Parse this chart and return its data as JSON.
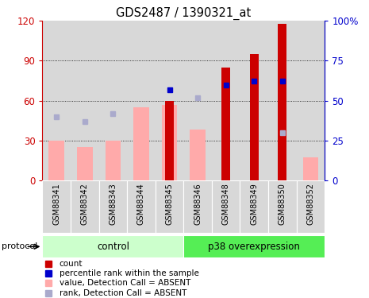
{
  "title": "GDS2487 / 1390321_at",
  "samples": [
    "GSM88341",
    "GSM88342",
    "GSM88343",
    "GSM88344",
    "GSM88345",
    "GSM88346",
    "GSM88348",
    "GSM88349",
    "GSM88350",
    "GSM88352"
  ],
  "count_values": [
    0,
    0,
    0,
    0,
    60,
    0,
    85,
    95,
    118,
    0
  ],
  "percentile_rank": [
    null,
    null,
    null,
    null,
    57,
    null,
    60,
    62,
    62,
    null
  ],
  "value_absent": [
    30,
    25,
    30,
    55,
    57,
    38,
    null,
    null,
    null,
    17
  ],
  "rank_absent": [
    40,
    37,
    42,
    null,
    null,
    52,
    null,
    null,
    30,
    null
  ],
  "groups": [
    "control",
    "control",
    "control",
    "control",
    "control",
    "p38 overexpression",
    "p38 overexpression",
    "p38 overexpression",
    "p38 overexpression",
    "p38 overexpression"
  ],
  "ylim_left": [
    0,
    120
  ],
  "ylim_right": [
    0,
    100
  ],
  "yticks_left": [
    0,
    30,
    60,
    90,
    120
  ],
  "yticks_right": [
    0,
    25,
    50,
    75,
    100
  ],
  "ytick_labels_left": [
    "0",
    "30",
    "60",
    "90",
    "120"
  ],
  "ytick_labels_right": [
    "0",
    "25",
    "50",
    "75",
    "100%"
  ],
  "color_count": "#cc0000",
  "color_percentile": "#0000cc",
  "color_value_absent": "#ffaaaa",
  "color_rank_absent": "#aaaacc",
  "control_color": "#ccffcc",
  "overexpression_color": "#55ee55",
  "bar_width": 0.55,
  "protocol_label": "protocol",
  "control_label": "control",
  "overexpression_label": "p38 overexpression",
  "legend_items": [
    "count",
    "percentile rank within the sample",
    "value, Detection Call = ABSENT",
    "rank, Detection Call = ABSENT"
  ],
  "col_bg": "#d8d8d8",
  "plot_bg": "#ffffff"
}
